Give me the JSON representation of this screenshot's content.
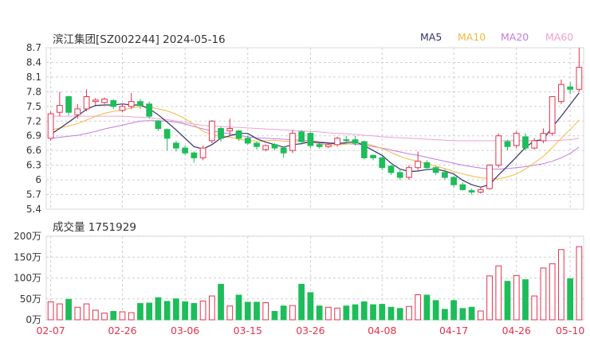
{
  "title": "滨江集团[SZ002244] 2024-05-16",
  "legend": [
    {
      "label": "MA5",
      "color": "#333366"
    },
    {
      "label": "MA10",
      "color": "#f5b83d"
    },
    {
      "label": "MA20",
      "color": "#c27ce0"
    },
    {
      "label": "MA60",
      "color": "#f0a0d0"
    }
  ],
  "volume_label": "成交量 1751929",
  "colors": {
    "up": "#e2334d",
    "down": "#1dbd5a",
    "axis_text": "#333333",
    "date_text": "#e2334d",
    "grid": "#cfcfcf"
  },
  "chart_data": [
    {
      "type": "candlestick",
      "yticks": [
        "8.7",
        "8.4",
        "8.1",
        "7.8",
        "7.5",
        "7.2",
        "6.9",
        "6.6",
        "6.3",
        "6",
        "5.7",
        "5.4"
      ],
      "ylim": [
        5.4,
        8.7
      ],
      "dates": [
        "02-07",
        "02-26",
        "03-06",
        "03-15",
        "03-26",
        "04-08",
        "04-17",
        "04-26",
        "05-10"
      ],
      "ohlc": [
        [
          6.85,
          7.35,
          6.8,
          7.4
        ],
        [
          7.38,
          7.52,
          7.3,
          7.8
        ],
        [
          7.7,
          7.38,
          7.32,
          7.72
        ],
        [
          7.33,
          7.45,
          7.25,
          7.55
        ],
        [
          7.45,
          7.7,
          7.4,
          7.85
        ],
        [
          7.6,
          7.63,
          7.53,
          7.67
        ],
        [
          7.58,
          7.65,
          7.55,
          7.68
        ],
        [
          7.62,
          7.5,
          7.45,
          7.65
        ],
        [
          7.42,
          7.5,
          7.38,
          7.55
        ],
        [
          7.5,
          7.6,
          7.45,
          7.78
        ],
        [
          7.6,
          7.52,
          7.45,
          7.65
        ],
        [
          7.55,
          7.3,
          7.25,
          7.6
        ],
        [
          7.2,
          7.05,
          7.0,
          7.22
        ],
        [
          7.03,
          6.85,
          6.6,
          7.05
        ],
        [
          6.75,
          6.65,
          6.58,
          6.8
        ],
        [
          6.65,
          6.55,
          6.5,
          6.7
        ],
        [
          6.55,
          6.45,
          6.35,
          6.58
        ],
        [
          6.45,
          6.65,
          6.4,
          6.7
        ],
        [
          6.8,
          7.2,
          6.75,
          7.22
        ],
        [
          7.05,
          6.85,
          6.78,
          7.08
        ],
        [
          7.0,
          7.05,
          6.9,
          7.25
        ],
        [
          7.0,
          6.85,
          6.8,
          7.02
        ],
        [
          6.85,
          6.75,
          6.72,
          6.9
        ],
        [
          6.75,
          6.68,
          6.62,
          6.78
        ],
        [
          6.62,
          6.7,
          6.58,
          6.72
        ],
        [
          6.72,
          6.65,
          6.6,
          6.75
        ],
        [
          6.65,
          6.55,
          6.45,
          6.68
        ],
        [
          6.6,
          6.95,
          6.55,
          7.02
        ],
        [
          6.98,
          6.78,
          6.72,
          7.02
        ],
        [
          6.95,
          6.7,
          6.65,
          6.98
        ],
        [
          6.72,
          6.68,
          6.64,
          6.75
        ],
        [
          6.68,
          6.72,
          6.65,
          6.76
        ],
        [
          6.72,
          6.85,
          6.68,
          6.88
        ],
        [
          6.82,
          6.8,
          6.75,
          6.9
        ],
        [
          6.82,
          6.75,
          6.7,
          6.9
        ],
        [
          6.78,
          6.45,
          6.42,
          6.8
        ],
        [
          6.5,
          6.45,
          6.4,
          6.52
        ],
        [
          6.45,
          6.25,
          6.2,
          6.48
        ],
        [
          6.28,
          6.15,
          6.1,
          6.3
        ],
        [
          6.15,
          6.05,
          6.0,
          6.2
        ],
        [
          6.05,
          6.25,
          6.0,
          6.3
        ],
        [
          6.25,
          6.38,
          6.2,
          6.58
        ],
        [
          6.35,
          6.25,
          6.2,
          6.4
        ],
        [
          6.25,
          6.15,
          6.1,
          6.28
        ],
        [
          6.15,
          6.05,
          6.0,
          6.22
        ],
        [
          6.05,
          5.9,
          5.85,
          6.08
        ],
        [
          5.9,
          5.8,
          5.78,
          5.95
        ],
        [
          5.78,
          5.75,
          5.7,
          5.82
        ],
        [
          5.75,
          5.8,
          5.72,
          5.85
        ],
        [
          5.82,
          6.3,
          5.8,
          6.32
        ],
        [
          6.3,
          6.9,
          6.25,
          6.95
        ],
        [
          6.78,
          6.68,
          6.6,
          6.82
        ],
        [
          6.7,
          6.95,
          6.65,
          7.0
        ],
        [
          6.88,
          6.65,
          6.6,
          6.95
        ],
        [
          6.65,
          6.8,
          6.62,
          6.85
        ],
        [
          6.8,
          6.95,
          6.75,
          7.05
        ],
        [
          6.95,
          7.7,
          6.9,
          7.7
        ],
        [
          7.6,
          7.95,
          7.55,
          8.05
        ],
        [
          7.9,
          7.85,
          7.75,
          8.0
        ],
        [
          7.85,
          8.3,
          7.8,
          8.7
        ]
      ],
      "ma5": [
        6.93,
        7.05,
        7.18,
        7.31,
        7.44,
        7.52,
        7.53,
        7.53,
        7.55,
        7.53,
        7.53,
        7.45,
        7.33,
        7.18,
        7.02,
        6.85,
        6.68,
        6.63,
        6.72,
        6.85,
        6.9,
        6.95,
        6.95,
        6.84,
        6.77,
        6.72,
        6.67,
        6.72,
        6.74,
        6.78,
        6.76,
        6.75,
        6.74,
        6.76,
        6.78,
        6.7,
        6.6,
        6.5,
        6.34,
        6.22,
        6.17,
        6.18,
        6.21,
        6.22,
        6.18,
        6.12,
        5.99,
        5.9,
        5.85,
        5.9,
        6.1,
        6.28,
        6.47,
        6.66,
        6.8,
        6.82,
        7.08,
        7.3,
        7.54,
        7.78
      ],
      "ma10": [
        7.02,
        7.06,
        7.1,
        7.15,
        7.22,
        7.3,
        7.36,
        7.4,
        7.43,
        7.47,
        7.5,
        7.49,
        7.45,
        7.41,
        7.34,
        7.25,
        7.13,
        6.99,
        6.92,
        6.9,
        6.87,
        6.83,
        6.8,
        6.79,
        6.8,
        6.81,
        6.79,
        6.79,
        6.78,
        6.77,
        6.74,
        6.71,
        6.72,
        6.73,
        6.75,
        6.75,
        6.7,
        6.64,
        6.56,
        6.48,
        6.42,
        6.38,
        6.33,
        6.28,
        6.23,
        6.17,
        6.12,
        6.08,
        6.04,
        6.03,
        6.02,
        6.06,
        6.12,
        6.22,
        6.35,
        6.48,
        6.66,
        6.85,
        7.03,
        7.22
      ],
      "ma20": [
        6.85,
        6.87,
        6.89,
        6.91,
        6.95,
        6.99,
        7.04,
        7.08,
        7.12,
        7.16,
        7.2,
        7.21,
        7.21,
        7.2,
        7.18,
        7.14,
        7.09,
        7.04,
        7.0,
        6.97,
        6.94,
        6.91,
        6.88,
        6.86,
        6.85,
        6.84,
        6.83,
        6.82,
        6.81,
        6.8,
        6.78,
        6.76,
        6.75,
        6.74,
        6.73,
        6.71,
        6.68,
        6.65,
        6.61,
        6.57,
        6.53,
        6.5,
        6.46,
        6.42,
        6.38,
        6.34,
        6.3,
        6.27,
        6.24,
        6.22,
        6.22,
        6.23,
        6.25,
        6.27,
        6.3,
        6.33,
        6.38,
        6.45,
        6.54,
        6.67
      ],
      "ma60": [
        7.3,
        7.3,
        7.3,
        7.3,
        7.3,
        7.3,
        7.3,
        7.3,
        7.3,
        7.29,
        7.28,
        7.27,
        7.25,
        7.23,
        7.2,
        7.17,
        7.14,
        7.11,
        7.1,
        7.09,
        7.08,
        7.07,
        7.06,
        7.05,
        7.04,
        7.03,
        7.02,
        7.01,
        7.0,
        6.99,
        6.98,
        6.96,
        6.95,
        6.94,
        6.93,
        6.91,
        6.9,
        6.88,
        6.87,
        6.86,
        6.85,
        6.84,
        6.83,
        6.82,
        6.81,
        6.8,
        6.8,
        6.8,
        6.8,
        6.8,
        6.8,
        6.8,
        6.8,
        6.8,
        6.8,
        6.8,
        6.8,
        6.81,
        6.82,
        6.85
      ]
    },
    {
      "type": "bar",
      "yticks": [
        "200万",
        "150万",
        "100万",
        "50万",
        "0万"
      ],
      "ylim": [
        0,
        2000000
      ],
      "volumes": [
        430000,
        380000,
        490000,
        300000,
        380000,
        230000,
        160000,
        200000,
        190000,
        170000,
        390000,
        400000,
        530000,
        440000,
        500000,
        430000,
        390000,
        450000,
        570000,
        850000,
        330000,
        590000,
        420000,
        420000,
        410000,
        200000,
        330000,
        340000,
        850000,
        650000,
        330000,
        300000,
        280000,
        330000,
        360000,
        430000,
        360000,
        370000,
        300000,
        270000,
        320000,
        600000,
        590000,
        460000,
        250000,
        460000,
        270000,
        300000,
        210000,
        1050000,
        1290000,
        920000,
        1060000,
        960000,
        570000,
        1240000,
        1340000,
        1680000,
        980000,
        1750000
      ]
    }
  ]
}
